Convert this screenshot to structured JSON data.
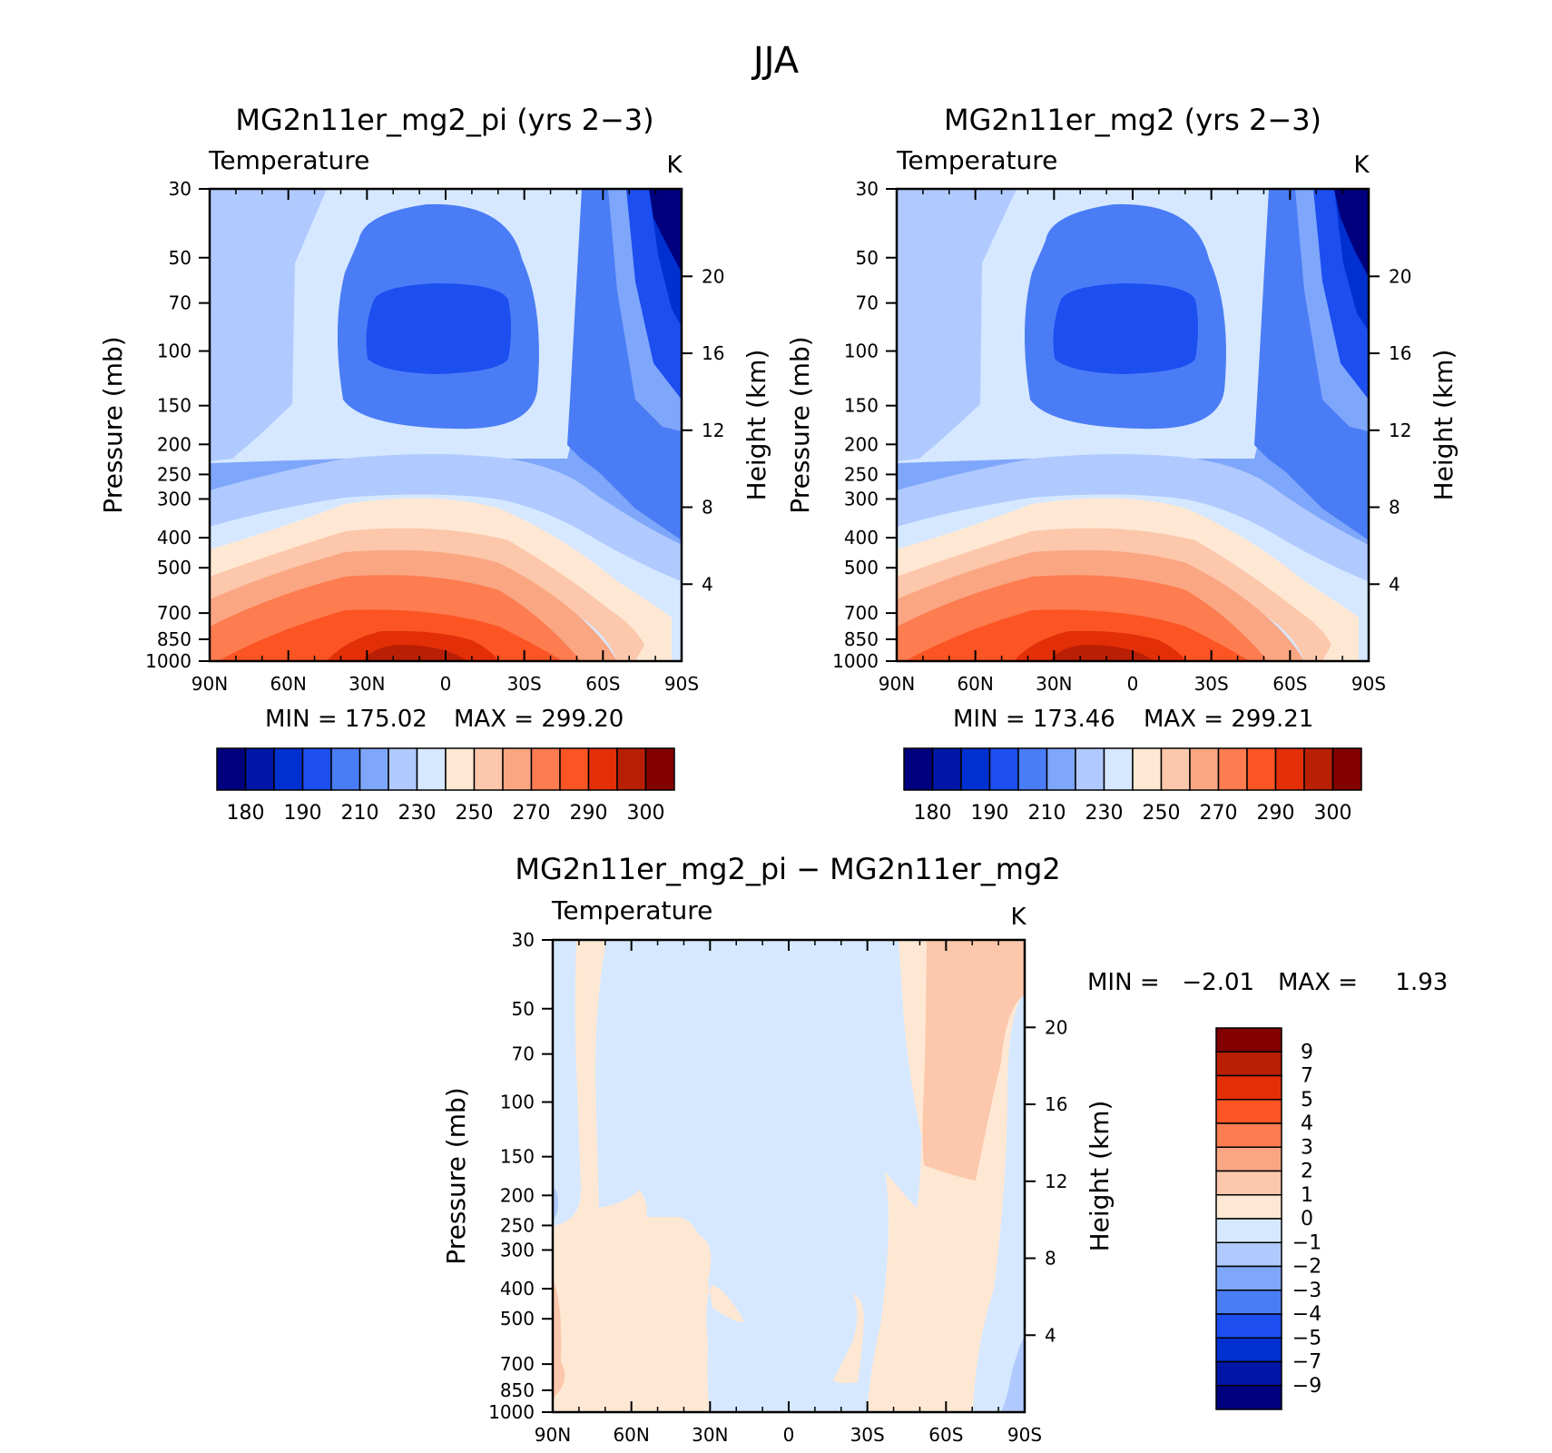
{
  "figure": {
    "title": "JJA"
  },
  "colors": {
    "abs": [
      "#00007f",
      "#0016a7",
      "#0030d0",
      "#1c4ef0",
      "#4a7cf6",
      "#7ea6fa",
      "#b0caff",
      "#d6e8ff",
      "#fee8d4",
      "#fcc7ab",
      "#fba682",
      "#fd7c50",
      "#fd5424",
      "#e32f07",
      "#b81f04",
      "#820000"
    ],
    "diff": [
      "#00007f",
      "#0016a7",
      "#0030d0",
      "#1c4ef0",
      "#4a7cf6",
      "#7ea6fa",
      "#b0caff",
      "#d6e8ff",
      "#fee8d4",
      "#fcc7ab",
      "#fba682",
      "#fd7c50",
      "#fd5424",
      "#e32f07",
      "#b81f04",
      "#820000"
    ]
  },
  "chart_data": [
    {
      "type": "heatmap",
      "title": "MG2n11er_mg2_pi (yrs 2−3)",
      "subtitle": "Temperature",
      "units": "K",
      "ylabel": "Pressure (mb)",
      "ylabel_right": "Height (km)",
      "x_ticks": [
        "90N",
        "60N",
        "30N",
        "0",
        "30S",
        "60S",
        "90S"
      ],
      "y_ticks": [
        "30",
        "50",
        "70",
        "100",
        "150",
        "200",
        "250",
        "300",
        "400",
        "500",
        "700",
        "850",
        "1000"
      ],
      "y_right_ticks": [
        "4",
        "8",
        "12",
        "16",
        "20"
      ],
      "ylim": [
        1000,
        30
      ],
      "y_scale": "log",
      "min_label": "MIN = 175.02",
      "max_label": "MAX = 299.20",
      "min": 175.02,
      "max": 299.2,
      "colorbar_labels": [
        "180",
        "190",
        "210",
        "230",
        "250",
        "270",
        "290",
        "300"
      ],
      "levels": [
        180,
        185,
        190,
        200,
        210,
        220,
        230,
        240,
        250,
        260,
        270,
        280,
        290,
        295,
        300
      ]
    },
    {
      "type": "heatmap",
      "title": "MG2n11er_mg2 (yrs 2−3)",
      "subtitle": "Temperature",
      "units": "K",
      "ylabel": "Pressure (mb)",
      "ylabel_right": "Height (km)",
      "x_ticks": [
        "90N",
        "60N",
        "30N",
        "0",
        "30S",
        "60S",
        "90S"
      ],
      "y_ticks": [
        "30",
        "50",
        "70",
        "100",
        "150",
        "200",
        "250",
        "300",
        "400",
        "500",
        "700",
        "850",
        "1000"
      ],
      "y_right_ticks": [
        "4",
        "8",
        "12",
        "16",
        "20"
      ],
      "ylim": [
        1000,
        30
      ],
      "y_scale": "log",
      "min_label": "MIN = 173.46",
      "max_label": "MAX = 299.21",
      "min": 173.46,
      "max": 299.21,
      "colorbar_labels": [
        "180",
        "190",
        "210",
        "230",
        "250",
        "270",
        "290",
        "300"
      ],
      "levels": [
        180,
        185,
        190,
        200,
        210,
        220,
        230,
        240,
        250,
        260,
        270,
        280,
        290,
        295,
        300
      ]
    },
    {
      "type": "heatmap",
      "title": "MG2n11er_mg2_pi − MG2n11er_mg2",
      "subtitle": "Temperature",
      "units": "K",
      "ylabel": "Pressure (mb)",
      "ylabel_right": "Height (km)",
      "x_ticks": [
        "90N",
        "60N",
        "30N",
        "0",
        "30S",
        "60S",
        "90S"
      ],
      "y_ticks": [
        "30",
        "50",
        "70",
        "100",
        "150",
        "200",
        "250",
        "300",
        "400",
        "500",
        "700",
        "850",
        "1000"
      ],
      "y_right_ticks": [
        "4",
        "8",
        "12",
        "16",
        "20"
      ],
      "ylim": [
        1000,
        30
      ],
      "y_scale": "log",
      "min_label": "MIN =   −2.01",
      "max_label": "MAX =     1.93",
      "min": -2.01,
      "max": 1.93,
      "colorbar_labels": [
        "9",
        "7",
        "5",
        "4",
        "3",
        "2",
        "1",
        "0",
        "−1",
        "−2",
        "−3",
        "−4",
        "−5",
        "−7",
        "−9"
      ],
      "levels": [
        -9,
        -7,
        -5,
        -4,
        -3,
        -2,
        -1,
        0,
        1,
        2,
        3,
        4,
        5,
        7,
        9
      ]
    }
  ]
}
